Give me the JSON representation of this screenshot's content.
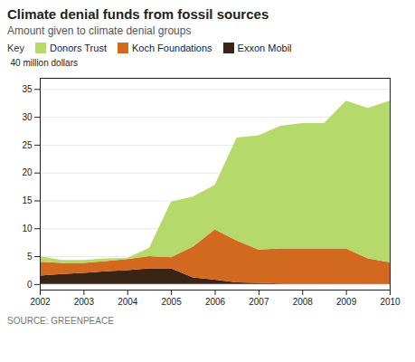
{
  "chart_data": {
    "type": "area",
    "stacked": true,
    "title": "Climate denial funds from fossil sources",
    "subtitle": "Amount given to climate denial groups",
    "ylabel": "40 million dollars",
    "source": "SOURCE: GREENPEACE",
    "annotations": [
      "Key"
    ],
    "x": [
      2002,
      2002.5,
      2003,
      2003.5,
      2004,
      2004.5,
      2005,
      2005.5,
      2006,
      2006.5,
      2007,
      2007.5,
      2008,
      2008.5,
      2009,
      2009.5,
      2010
    ],
    "series": [
      {
        "name": "Exxon Mobil",
        "color": "#3a2416",
        "values": [
          1.5,
          1.8,
          2.0,
          2.3,
          2.5,
          2.8,
          2.8,
          1.2,
          0.8,
          0.3,
          0.2,
          0.1,
          0.1,
          0.1,
          0.1,
          0.1,
          0.1
        ]
      },
      {
        "name": "Koch Foundations",
        "color": "#d2691e",
        "values": [
          2.5,
          2.0,
          1.8,
          1.8,
          2.0,
          2.2,
          2.0,
          5.5,
          9.0,
          7.5,
          6.0,
          6.3,
          6.3,
          6.3,
          6.3,
          4.5,
          3.8
        ]
      },
      {
        "name": "Donors Trust",
        "color": "#b5d96b",
        "values": [
          1.0,
          0.5,
          0.5,
          0.5,
          0.2,
          1.5,
          10.0,
          9.0,
          8.0,
          18.5,
          20.5,
          22.0,
          22.5,
          22.5,
          26.5,
          27.0,
          29.0
        ]
      }
    ],
    "xlim": [
      2002,
      2010
    ],
    "xticks": [
      2002,
      2003,
      2004,
      2005,
      2006,
      2007,
      2008,
      2009,
      2010
    ],
    "ylim": [
      -1,
      37
    ],
    "yticks": [
      0,
      5,
      10,
      15,
      20,
      25,
      30,
      35
    ],
    "grid": true,
    "legend": "upper left"
  }
}
